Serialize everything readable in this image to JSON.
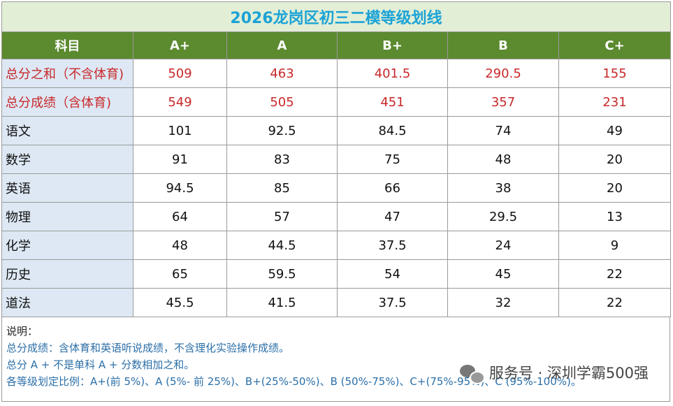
{
  "title": "2026龙岗区初三二模等级划线",
  "columns": [
    "科目",
    "A+",
    "A",
    "B+",
    "B",
    "C+"
  ],
  "rows": [
    {
      "subject": "总分之和（不含体育)",
      "values": [
        "509",
        "463",
        "401.5",
        "290.5",
        "155"
      ],
      "highlight": true
    },
    {
      "subject": "总分成绩（含体育)",
      "values": [
        "549",
        "505",
        "451",
        "357",
        "231"
      ],
      "highlight": true
    },
    {
      "subject": "语文",
      "values": [
        "101",
        "92.5",
        "84.5",
        "74",
        "49"
      ],
      "highlight": false
    },
    {
      "subject": "数学",
      "values": [
        "91",
        "83",
        "75",
        "48",
        "20"
      ],
      "highlight": false
    },
    {
      "subject": "英语",
      "values": [
        "94.5",
        "85",
        "66",
        "38",
        "20"
      ],
      "highlight": false
    },
    {
      "subject": "物理",
      "values": [
        "64",
        "57",
        "47",
        "29.5",
        "13"
      ],
      "highlight": false
    },
    {
      "subject": "化学",
      "values": [
        "48",
        "44.5",
        "37.5",
        "24",
        "9"
      ],
      "highlight": false
    },
    {
      "subject": "历史",
      "values": [
        "65",
        "59.5",
        "54",
        "45",
        "22"
      ],
      "highlight": false
    },
    {
      "subject": "道法",
      "values": [
        "45.5",
        "41.5",
        "37.5",
        "32",
        "22"
      ],
      "highlight": false
    }
  ],
  "notes": {
    "heading": "说明：",
    "lines": [
      "总分成绩：含体育和英语听说成绩，不含理化实验操作成绩。",
      "总分 A + 不是单科 A + 分数相加之和。",
      "各等级划定比例：A+(前 5%)、A (5%- 前 25%)、B+(25%-50%)、B (50%-75%)、C+(75%-95%)、C (95%-100%)。"
    ]
  },
  "watermark": {
    "text": "服务号 · 深圳学霸500强",
    "icon": "wechat-icon"
  },
  "colors": {
    "title_text": "#1ba3d6",
    "title_bg": "#e3eed6",
    "header_bg": "#5b8a2f",
    "subject_bg": "#dde8f4",
    "highlight_text": "#c8282a",
    "note_text": "#2c6fa8"
  }
}
